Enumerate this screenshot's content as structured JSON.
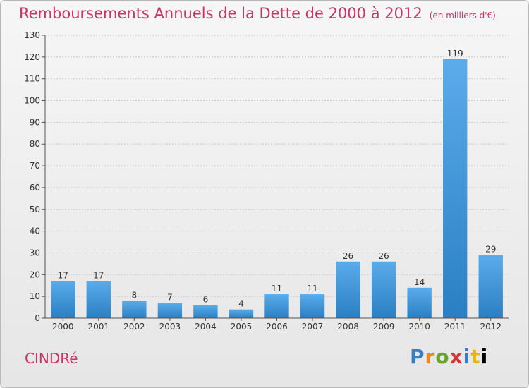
{
  "header": {
    "title": "Remboursements Annuels de la Dette de 2000 à 2012",
    "unit": "(en milliers d'€)"
  },
  "footer": {
    "place": "CINDRé",
    "logo_text": "Proxiti"
  },
  "colors": {
    "title": "#cc3366",
    "bar_light": "#5aacea",
    "bar_dark": "#2a7fc4",
    "grid": "#c8c8c8"
  },
  "chart_data": {
    "type": "bar",
    "title": "Remboursements Annuels de la Dette de 2000 à 2012",
    "xlabel": "",
    "ylabel": "",
    "categories": [
      "2000",
      "2001",
      "2002",
      "2003",
      "2004",
      "2005",
      "2006",
      "2007",
      "2008",
      "2009",
      "2010",
      "2011",
      "2012"
    ],
    "values": [
      17,
      17,
      8,
      7,
      6,
      4,
      11,
      11,
      26,
      26,
      14,
      119,
      29
    ],
    "ylim": [
      0,
      130
    ],
    "yticks": [
      0,
      10,
      20,
      30,
      40,
      50,
      60,
      70,
      80,
      90,
      100,
      110,
      120,
      130
    ],
    "grid": true,
    "data_labels": true
  }
}
